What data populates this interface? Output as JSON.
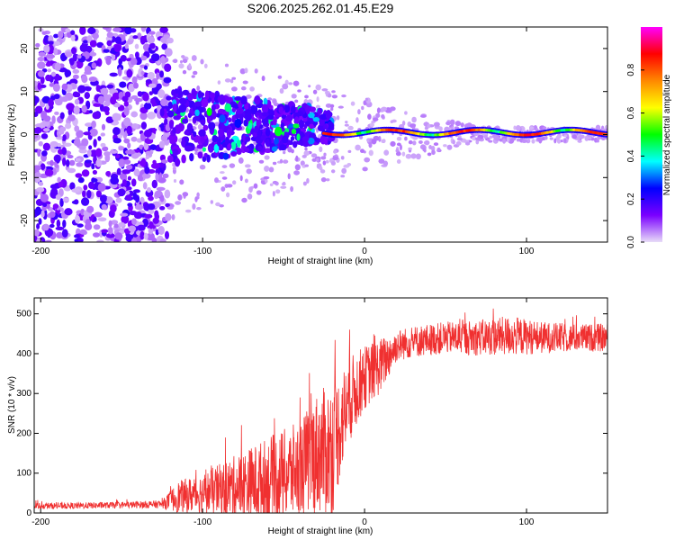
{
  "title": "S206.2025.262.01.45.E29",
  "chart_data": [
    {
      "type": "heatmap",
      "title": "S206.2025.262.01.45.E29",
      "xlabel": "Height of straight line (km)",
      "ylabel": "Frequency (Hz)",
      "xlim": [
        -204,
        150
      ],
      "ylim": [
        -25,
        25
      ],
      "xticks": [
        -200,
        -100,
        0,
        100
      ],
      "yticks": [
        -20,
        -10,
        0,
        10,
        20
      ],
      "description_points": {
        "noise_region": [
          -204,
          -120
        ],
        "signal_onset_km": -120,
        "signal_line_freq_hz": 0.5
      },
      "colorbar": {
        "label": "Normalized spectral amplitude",
        "range": [
          0.0,
          1.0
        ],
        "ticks": [
          0.0,
          0.2,
          0.4,
          0.6,
          0.8
        ],
        "tick_labels": [
          "0.0",
          "0.2",
          "0.4",
          "0.6",
          "0.8"
        ],
        "colormap": [
          "#e8dcf8",
          "#7a00ff",
          "#0000ff",
          "#00ffff",
          "#00ff00",
          "#ffff00",
          "#ff8800",
          "#ff0000",
          "#ff00ff"
        ]
      }
    },
    {
      "type": "line",
      "xlabel": "Height of straight line (km)",
      "ylabel": "SNR (10 * v/v)",
      "xlim": [
        -204,
        150
      ],
      "ylim": [
        0,
        540
      ],
      "xticks": [
        -200,
        -100,
        0,
        100
      ],
      "yticks": [
        0,
        100,
        200,
        300,
        400,
        500
      ],
      "color": "#f03030",
      "series": [
        {
          "name": "SNR",
          "x": [
            -204,
            -180,
            -150,
            -125,
            -115,
            -100,
            -80,
            -60,
            -40,
            -30,
            -20,
            -15,
            -10,
            0,
            10,
            20,
            30,
            50,
            70,
            90,
            110,
            130,
            150
          ],
          "y_mean": [
            18,
            18,
            20,
            22,
            40,
            50,
            65,
            80,
            110,
            150,
            160,
            220,
            280,
            340,
            370,
            420,
            430,
            440,
            440,
            445,
            440,
            440,
            440
          ],
          "y_spread": [
            8,
            8,
            8,
            10,
            40,
            50,
            80,
            110,
            120,
            150,
            170,
            130,
            110,
            80,
            70,
            40,
            40,
            40,
            45,
            50,
            40,
            35,
            35
          ]
        }
      ]
    }
  ]
}
